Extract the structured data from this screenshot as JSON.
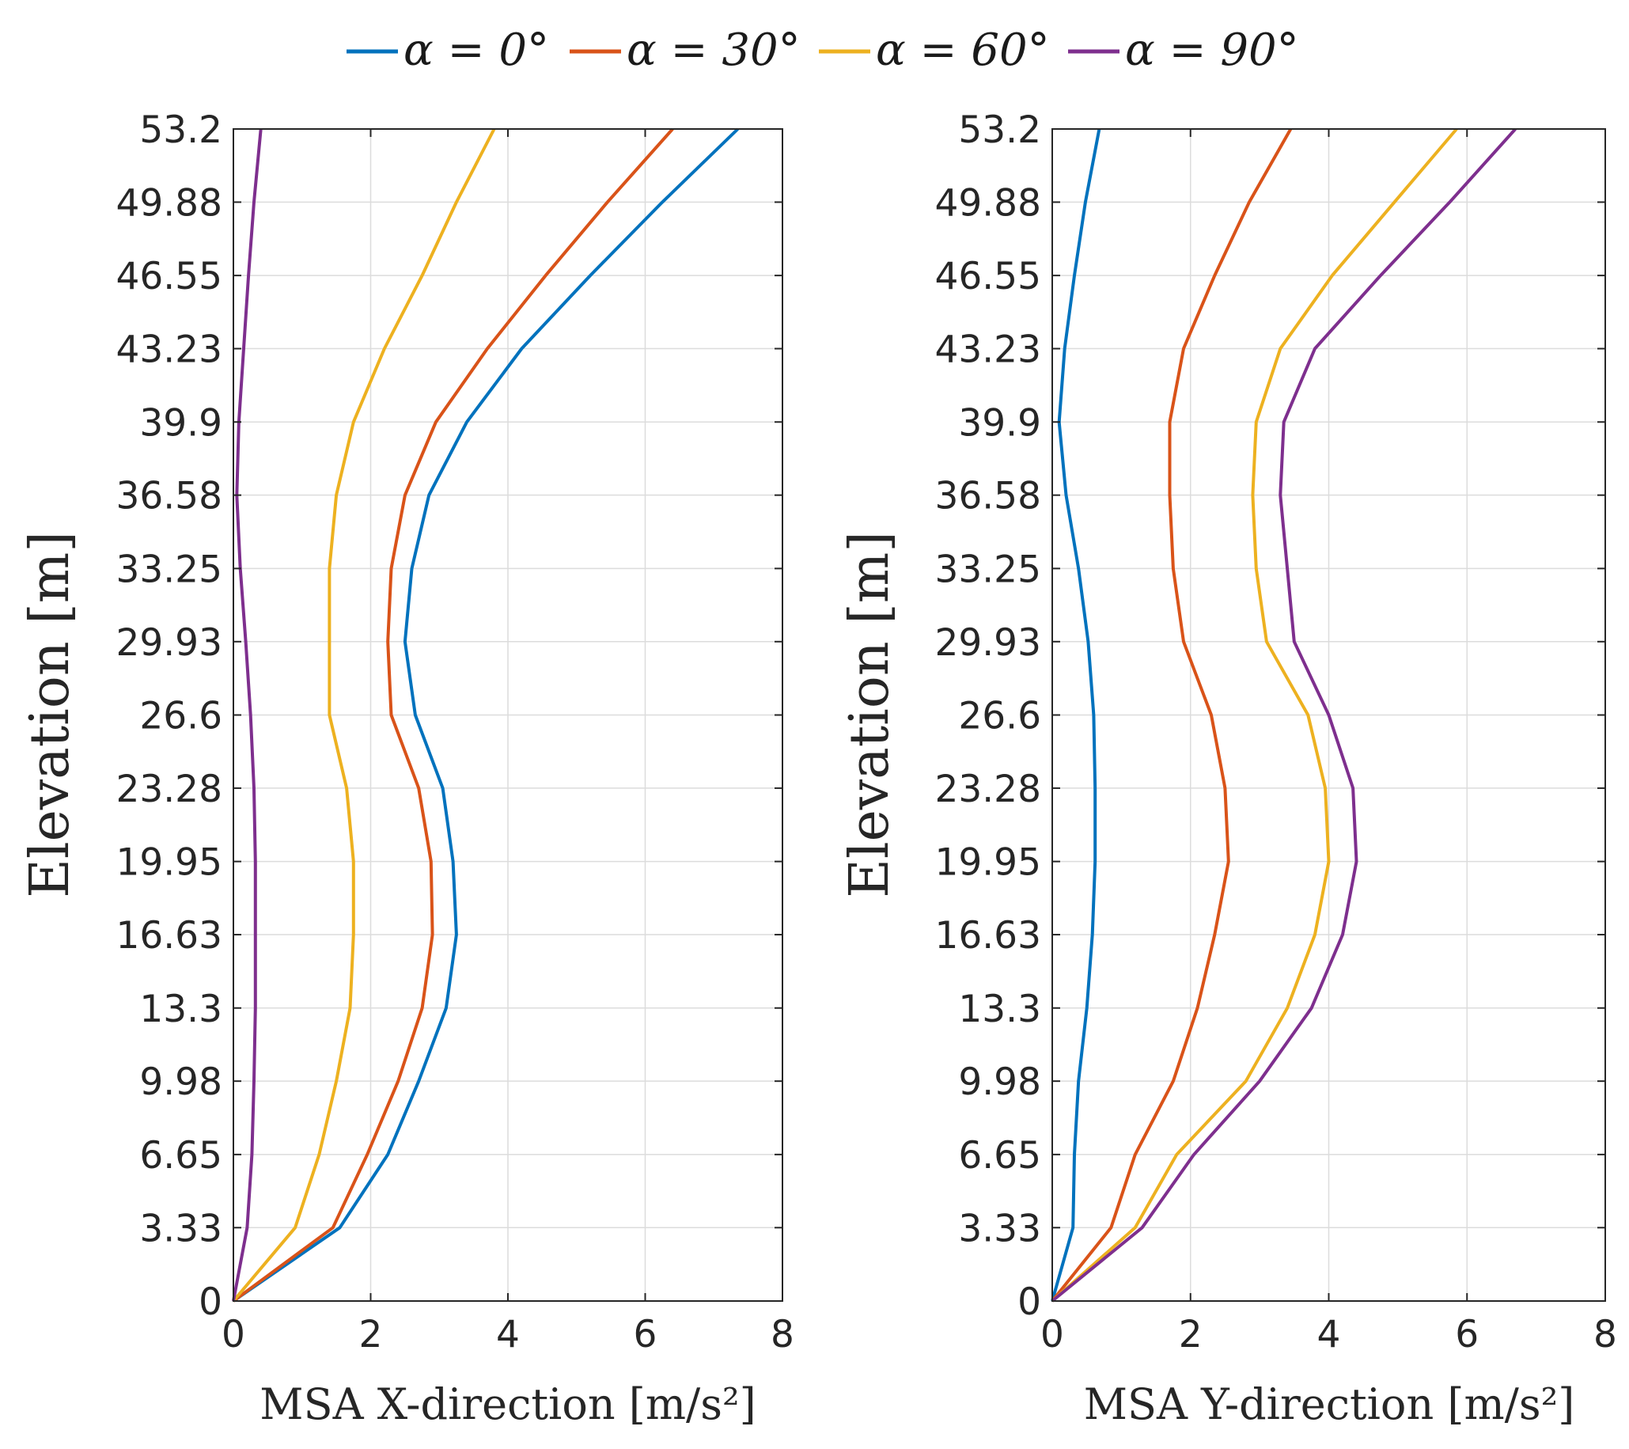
{
  "legend": {
    "items": [
      {
        "label": "α = 0°",
        "color": "#0072BD"
      },
      {
        "label": "α = 30°",
        "color": "#D95319"
      },
      {
        "label": "α = 60°",
        "color": "#EDB120"
      },
      {
        "label": "α = 90°",
        "color": "#7E2F8E"
      }
    ]
  },
  "chart_data": [
    {
      "type": "line",
      "orientation": "profile",
      "xlabel": "MSA X-direction [m/s²]",
      "ylabel": "Elevation [m]",
      "xlim": [
        0,
        8
      ],
      "ylim": [
        0,
        53.2
      ],
      "xticks": [
        0,
        2,
        4,
        6,
        8
      ],
      "xtick_labels": [
        "0",
        "2",
        "4",
        "6",
        "8"
      ],
      "yticks": [
        0,
        3.33,
        6.65,
        9.98,
        13.3,
        16.63,
        19.95,
        23.28,
        26.6,
        29.93,
        33.25,
        36.58,
        39.9,
        43.23,
        46.55,
        49.88,
        53.2
      ],
      "ytick_labels": [
        "0",
        "3.33",
        "6.65",
        "9.98",
        "13.3",
        "16.63",
        "19.95",
        "23.28",
        "26.6",
        "29.93",
        "33.25",
        "36.58",
        "39.9",
        "43.23",
        "46.55",
        "49.88",
        "53.2"
      ],
      "grid": true,
      "elevation": [
        0,
        3.33,
        6.65,
        9.98,
        13.3,
        16.63,
        19.95,
        23.28,
        26.6,
        29.93,
        33.25,
        36.58,
        39.9,
        43.23,
        46.55,
        49.88,
        53.2
      ],
      "series": [
        {
          "name": "α = 0°",
          "values": [
            0,
            1.55,
            2.25,
            2.7,
            3.1,
            3.25,
            3.2,
            3.05,
            2.65,
            2.5,
            2.6,
            2.85,
            3.4,
            4.2,
            5.2,
            6.25,
            7.35
          ]
        },
        {
          "name": "α = 30°",
          "values": [
            0,
            1.45,
            1.95,
            2.4,
            2.75,
            2.9,
            2.88,
            2.7,
            2.3,
            2.25,
            2.3,
            2.5,
            2.95,
            3.7,
            4.55,
            5.45,
            6.4
          ]
        },
        {
          "name": "α = 60°",
          "values": [
            0,
            0.9,
            1.25,
            1.5,
            1.7,
            1.75,
            1.75,
            1.65,
            1.4,
            1.4,
            1.4,
            1.5,
            1.75,
            2.2,
            2.75,
            3.25,
            3.8
          ]
        },
        {
          "name": "α = 90°",
          "values": [
            0,
            0.2,
            0.27,
            0.3,
            0.32,
            0.32,
            0.32,
            0.3,
            0.25,
            0.18,
            0.1,
            0.05,
            0.08,
            0.15,
            0.22,
            0.3,
            0.4
          ]
        }
      ]
    },
    {
      "type": "line",
      "orientation": "profile",
      "xlabel": "MSA Y-direction [m/s²]",
      "ylabel": "Elevation [m]",
      "xlim": [
        0,
        8
      ],
      "ylim": [
        0,
        53.2
      ],
      "xticks": [
        0,
        2,
        4,
        6,
        8
      ],
      "xtick_labels": [
        "0",
        "2",
        "4",
        "6",
        "8"
      ],
      "yticks": [
        0,
        3.33,
        6.65,
        9.98,
        13.3,
        16.63,
        19.95,
        23.28,
        26.6,
        29.93,
        33.25,
        36.58,
        39.9,
        43.23,
        46.55,
        49.88,
        53.2
      ],
      "ytick_labels": [
        "0",
        "3.33",
        "6.65",
        "9.98",
        "13.3",
        "16.63",
        "19.95",
        "23.28",
        "26.6",
        "29.93",
        "33.25",
        "36.58",
        "39.9",
        "43.23",
        "46.55",
        "49.88",
        "53.2"
      ],
      "grid": true,
      "elevation": [
        0,
        3.33,
        6.65,
        9.98,
        13.3,
        16.63,
        19.95,
        23.28,
        26.6,
        29.93,
        33.25,
        36.58,
        39.9,
        43.23,
        46.55,
        49.88,
        53.2
      ],
      "series": [
        {
          "name": "α = 0°",
          "values": [
            0,
            0.3,
            0.32,
            0.38,
            0.5,
            0.58,
            0.62,
            0.62,
            0.6,
            0.52,
            0.38,
            0.2,
            0.1,
            0.18,
            0.32,
            0.48,
            0.68
          ]
        },
        {
          "name": "α = 30°",
          "values": [
            0,
            0.85,
            1.2,
            1.75,
            2.1,
            2.35,
            2.55,
            2.5,
            2.3,
            1.9,
            1.75,
            1.7,
            1.7,
            1.9,
            2.35,
            2.85,
            3.45
          ]
        },
        {
          "name": "α = 60°",
          "values": [
            0,
            1.2,
            1.8,
            2.8,
            3.4,
            3.8,
            4.0,
            3.95,
            3.7,
            3.1,
            2.95,
            2.9,
            2.95,
            3.3,
            4.05,
            4.95,
            5.85
          ]
        },
        {
          "name": "α = 90°",
          "values": [
            0,
            1.3,
            2.05,
            3.0,
            3.75,
            4.2,
            4.4,
            4.35,
            4.0,
            3.5,
            3.4,
            3.3,
            3.35,
            3.8,
            4.75,
            5.75,
            6.7
          ]
        }
      ]
    }
  ]
}
